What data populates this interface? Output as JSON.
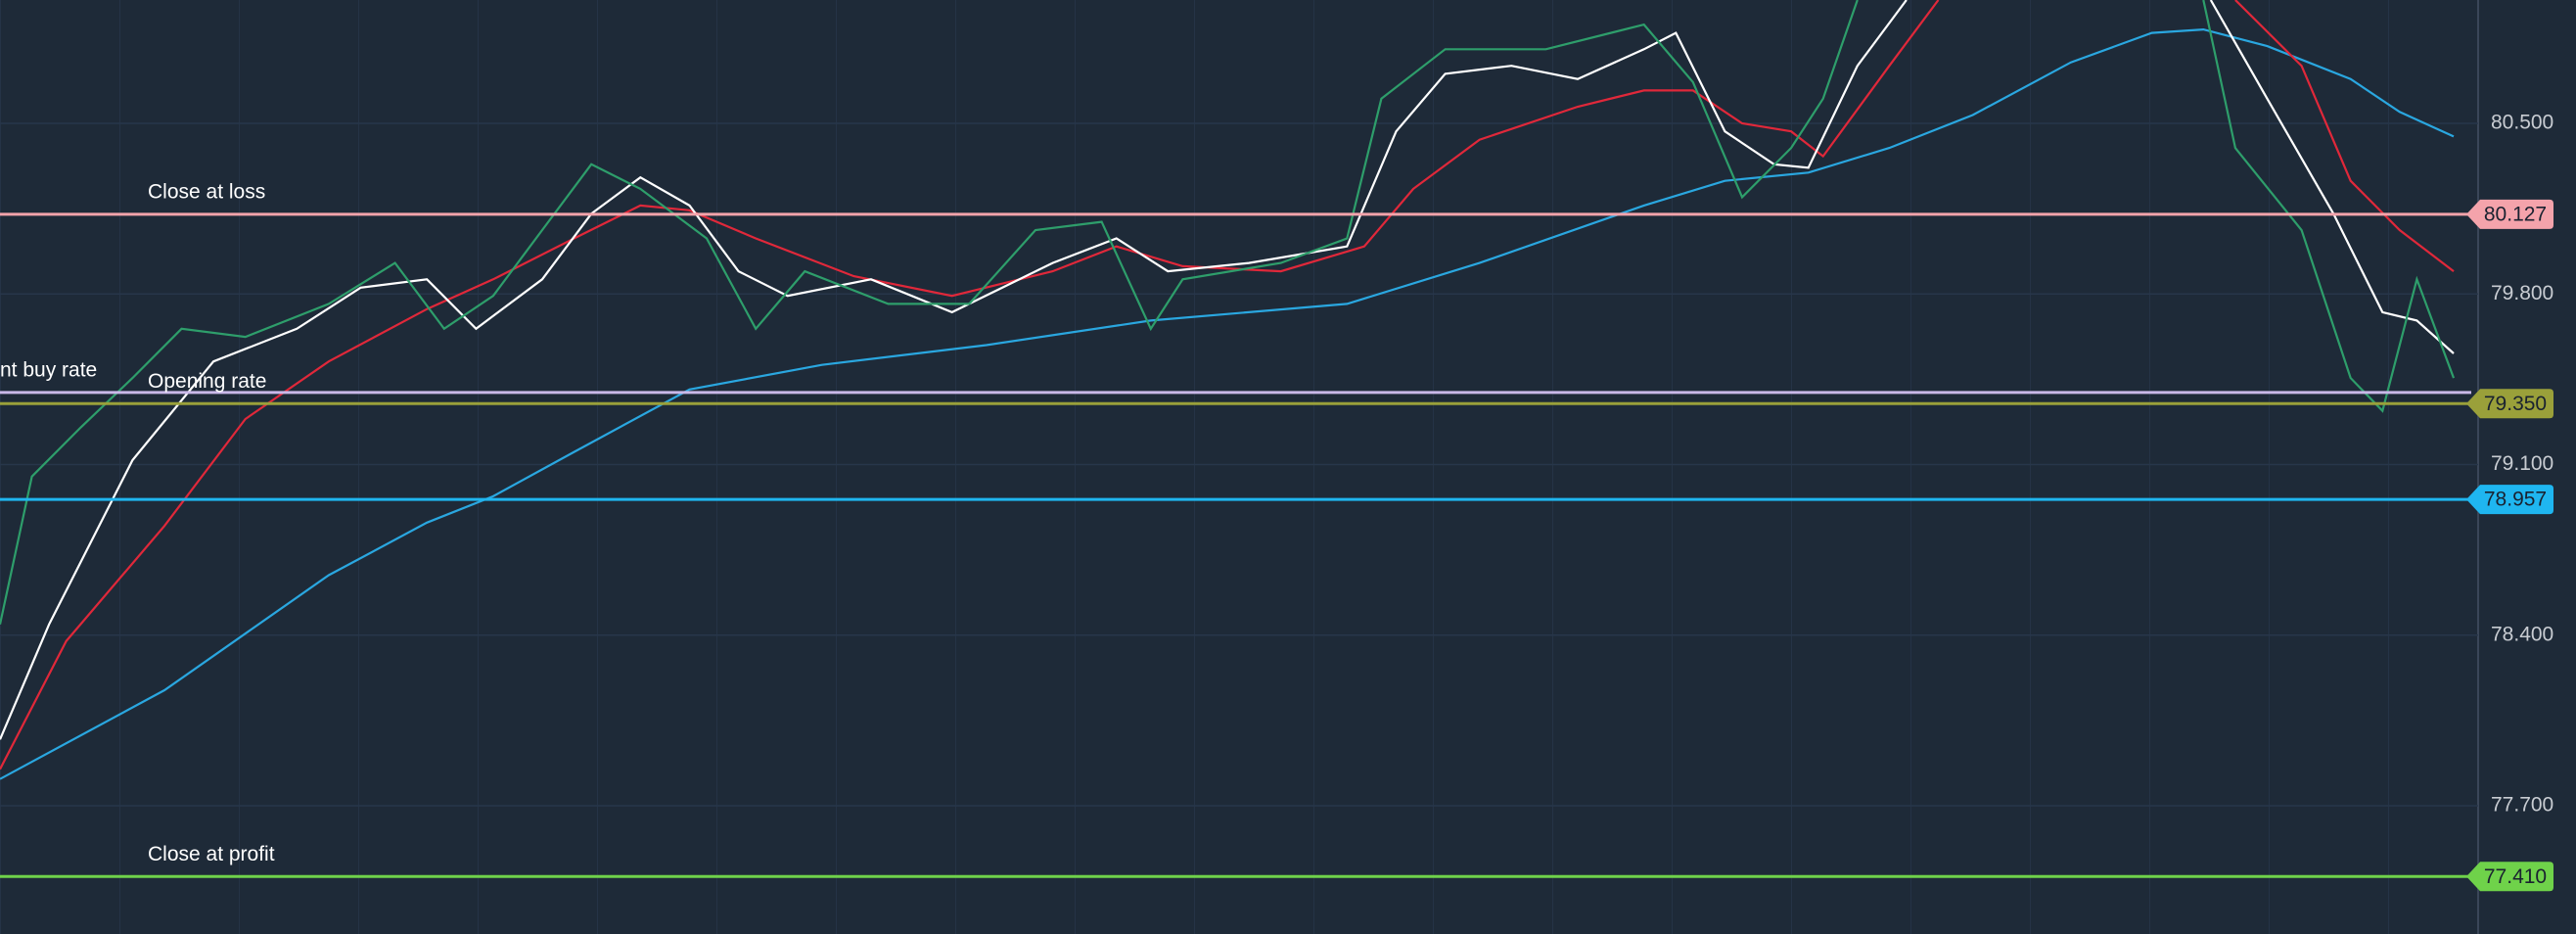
{
  "chart_data": {
    "type": "line",
    "xlim": [
      0,
      100
    ],
    "ylim": [
      77.174,
      81.006
    ],
    "yticks": [
      {
        "value": 80.5,
        "label": "80.500"
      },
      {
        "value": 79.8,
        "label": "79.800"
      },
      {
        "value": 79.1,
        "label": "79.100"
      },
      {
        "value": 78.4,
        "label": "78.400"
      },
      {
        "value": 77.7,
        "label": "77.700"
      }
    ],
    "grid": true,
    "series": [
      {
        "color": "#2aa7e0",
        "x": [
          0,
          6.7,
          13.4,
          17.4,
          20.1,
          23.4,
          28.1,
          33.5,
          40.2,
          46.9,
          54.9,
          60.3,
          67.0,
          70.3,
          73.7,
          77.0,
          80.4,
          84.4,
          87.7,
          89.8,
          92.4,
          95.8,
          97.8,
          100
        ],
        "values": [
          77.81,
          78.174,
          78.646,
          78.862,
          78.97,
          79.152,
          79.408,
          79.509,
          79.59,
          79.691,
          79.759,
          79.927,
          80.163,
          80.264,
          80.298,
          80.399,
          80.534,
          80.75,
          80.871,
          80.885,
          80.817,
          80.682,
          80.547,
          80.446
        ]
      },
      {
        "color": "#e0283a",
        "x": [
          0,
          2.7,
          6.7,
          10.0,
          13.4,
          17.4,
          20.1,
          23.4,
          26.1,
          28.1,
          30.8,
          34.8,
          38.8,
          42.9,
          45.5,
          48.2,
          52.2,
          55.6,
          57.6,
          60.3,
          64.3,
          67.0,
          69.0,
          71.0,
          73.0,
          74.3,
          77.0,
          79.0,
          85.0,
          91.1,
          93.8,
          95.8,
          97.8,
          100
        ],
        "values": [
          77.85,
          78.376,
          78.848,
          79.287,
          79.523,
          79.738,
          79.86,
          80.028,
          80.163,
          80.143,
          80.028,
          79.873,
          79.792,
          79.893,
          79.995,
          79.914,
          79.893,
          79.995,
          80.231,
          80.433,
          80.568,
          80.635,
          80.635,
          80.5,
          80.467,
          80.365,
          80.736,
          81.006,
          null,
          81.006,
          80.736,
          80.264,
          80.062,
          79.893
        ]
      },
      {
        "color": "#ffffff",
        "x": [
          0,
          2.0,
          5.4,
          8.7,
          12.1,
          14.7,
          17.4,
          19.4,
          22.1,
          24.1,
          26.1,
          28.1,
          30.1,
          32.1,
          35.5,
          38.8,
          42.9,
          45.5,
          47.6,
          50.9,
          54.9,
          56.9,
          58.9,
          61.6,
          64.3,
          67.0,
          68.3,
          70.3,
          72.3,
          73.7,
          75.7,
          77.7,
          84.0,
          90.1,
          92.4,
          95.1,
          97.1,
          98.5,
          100
        ],
        "values": [
          77.972,
          78.444,
          79.118,
          79.523,
          79.657,
          79.826,
          79.86,
          79.657,
          79.86,
          80.129,
          80.278,
          80.163,
          79.893,
          79.792,
          79.86,
          79.725,
          79.927,
          80.028,
          79.893,
          79.927,
          79.995,
          80.467,
          80.703,
          80.736,
          80.682,
          80.804,
          80.871,
          80.467,
          80.332,
          80.318,
          80.736,
          81.006,
          null,
          81.006,
          80.601,
          80.129,
          79.725,
          79.691,
          79.556
        ]
      },
      {
        "color": "#2e9e6b",
        "x": [
          0,
          1.3,
          3.3,
          5.4,
          7.4,
          10.0,
          13.4,
          16.1,
          18.1,
          20.1,
          22.1,
          24.1,
          26.1,
          28.8,
          30.8,
          32.8,
          36.2,
          39.5,
          42.2,
          44.9,
          46.9,
          48.2,
          52.2,
          54.9,
          56.3,
          58.9,
          63.0,
          67.0,
          69.0,
          71.0,
          73.0,
          74.3,
          75.7,
          83.0,
          89.8,
          91.1,
          93.8,
          95.8,
          97.1,
          98.5,
          100
        ],
        "values": [
          78.444,
          79.051,
          79.253,
          79.455,
          79.657,
          79.624,
          79.759,
          79.927,
          79.657,
          79.792,
          80.062,
          80.332,
          80.231,
          80.028,
          79.657,
          79.893,
          79.759,
          79.759,
          80.062,
          80.096,
          79.657,
          79.86,
          79.927,
          80.028,
          80.601,
          80.804,
          80.804,
          80.905,
          80.669,
          80.197,
          80.399,
          80.601,
          81.006,
          null,
          81.006,
          80.399,
          80.062,
          79.455,
          79.32,
          79.86,
          79.455
        ]
      }
    ],
    "levels": [
      {
        "label": "Close at loss",
        "value": 80.127,
        "color": "#f4a3ab"
      },
      {
        "label": "nt buy rate",
        "value": 79.396,
        "color": "#c9b8e8"
      },
      {
        "label": "Opening rate",
        "value": 79.35,
        "value_label": "79.350",
        "color": "#9aa03a"
      },
      {
        "value": 78.957,
        "color": "#1fb6f0"
      },
      {
        "label": "Close at profit",
        "value": 77.41,
        "value_label": "77.410",
        "color": "#6fd24a"
      }
    ]
  }
}
